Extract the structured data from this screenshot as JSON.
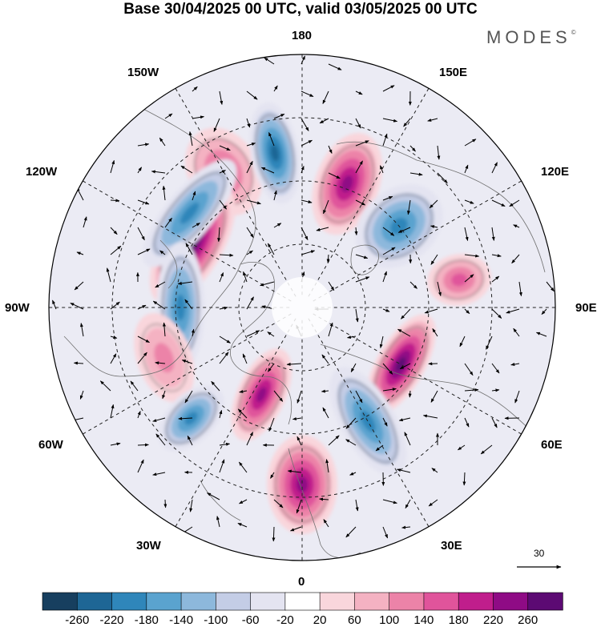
{
  "title": "Base 30/04/2025 00 UTC, valid 03/05/2025 00 UTC",
  "brand": "MODES",
  "brand_mark": "©",
  "longitude_labels": {
    "top": "180",
    "bottom": "0",
    "left": "90W",
    "right": "90E",
    "upper_left_1": "150W",
    "upper_left_2": "120W",
    "upper_right_1": "150E",
    "upper_right_2": "120E",
    "lower_left_1": "60W",
    "lower_left_2": "30W",
    "lower_right_1": "60E",
    "lower_right_2": "30E"
  },
  "reference_vector": "30",
  "colorbar": {
    "ticks": [
      "-260",
      "-220",
      "-180",
      "-140",
      "-100",
      "-60",
      "-20",
      "20",
      "60",
      "100",
      "140",
      "180",
      "220",
      "260"
    ],
    "colors": [
      "#173f5f",
      "#1e6695",
      "#2f86ba",
      "#5aa3cf",
      "#8db8dc",
      "#c4cde6",
      "#e4e4f1",
      "#ffffff",
      "#f9d6dc",
      "#f4b2c2",
      "#ec83a8",
      "#e0549b",
      "#c01e8c",
      "#8f0b85",
      "#5c0a73"
    ]
  },
  "map_data": {
    "projection": "north polar stereographic",
    "field": "anomaly",
    "anomalies": [
      {
        "lon_label": "150W",
        "sign": "positive",
        "strength": 140
      },
      {
        "lon_label": "170W",
        "sign": "negative",
        "strength": -220
      },
      {
        "lon_label": "160E",
        "sign": "positive",
        "strength": 220
      },
      {
        "lon_label": "130E",
        "sign": "negative",
        "strength": -180
      },
      {
        "lon_label": "100E",
        "sign": "positive",
        "strength": 140
      },
      {
        "lon_label": "120W",
        "sign": "positive",
        "strength": 260
      },
      {
        "lon_label": "130W",
        "sign": "negative",
        "strength": -180
      },
      {
        "lon_label": "90W",
        "sign": "negative",
        "strength": -180
      },
      {
        "lon_label": "60E",
        "sign": "positive",
        "strength": 260
      },
      {
        "lon_label": "70W",
        "sign": "positive",
        "strength": 100
      },
      {
        "lon_label": "45W",
        "sign": "negative",
        "strength": -180
      },
      {
        "lon_label": "25W",
        "sign": "positive",
        "strength": 220
      },
      {
        "lon_label": "30E",
        "sign": "negative",
        "strength": -180
      },
      {
        "lon_label": "0",
        "sign": "positive",
        "strength": 220
      }
    ]
  }
}
